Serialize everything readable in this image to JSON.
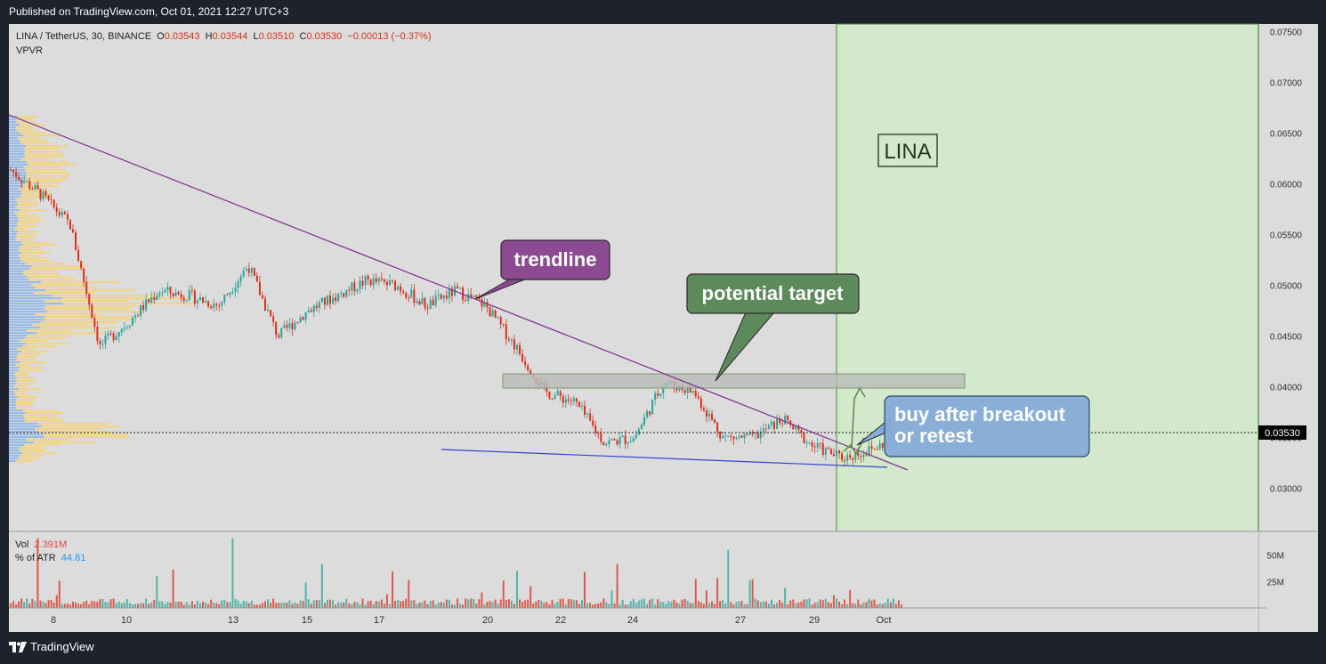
{
  "header": {
    "published": "Published on TradingView.com, Oct 01, 2021 12:27 UTC+3"
  },
  "legend": {
    "symbol": "LINA / TetherUS, 30, BINANCE",
    "open_label": "O",
    "open": "0.03543",
    "high_label": "H",
    "high": "0.03544",
    "low_label": "L",
    "low": "0.03510",
    "close_label": "C",
    "close": "0.03530",
    "change": "−0.00013 (−0.37%)",
    "indicator": "VPVR"
  },
  "volume_legend": {
    "vol_label": "Vol",
    "vol_value": "2.391M",
    "atr_label": "% of ATR",
    "atr_value": "44.81"
  },
  "footer": {
    "brand": "TradingView"
  },
  "colors": {
    "up": "#26a69a",
    "down": "#d9301b",
    "trendline": "#7b2d8e",
    "support": "#3245c8",
    "target_zone": "#a8d98f"
  },
  "chart_data": {
    "type": "candlestick",
    "price_axis": {
      "ticks": [
        "0.07500",
        "0.07000",
        "0.06500",
        "0.06000",
        "0.05500",
        "0.05000",
        "0.04500",
        "0.04000",
        "0.03500",
        "0.03000"
      ],
      "range": [
        0.0255,
        0.0755
      ],
      "current_price": "0.03530"
    },
    "volume_axis": {
      "ticks": [
        "50M",
        "25M"
      ],
      "range": [
        0,
        70
      ]
    },
    "time_axis": {
      "ticks": [
        "8",
        "10",
        "13",
        "15",
        "17",
        "20",
        "22",
        "24",
        "27",
        "29",
        "Oct"
      ]
    },
    "close_path": [
      [
        "8",
        0.0614
      ],
      [
        "8",
        0.059
      ],
      [
        "8",
        0.056
      ],
      [
        "8",
        0.044
      ],
      [
        "10",
        0.0465
      ],
      [
        "10",
        0.0495
      ],
      [
        "10",
        0.049
      ],
      [
        "13",
        0.048
      ],
      [
        "13",
        0.052
      ],
      [
        "13",
        0.045
      ],
      [
        "15",
        0.0475
      ],
      [
        "15",
        0.049
      ],
      [
        "15",
        0.0505
      ],
      [
        "17",
        0.05
      ],
      [
        "17",
        0.048
      ],
      [
        "17",
        0.0495
      ],
      [
        "20",
        0.048
      ],
      [
        "20",
        0.044
      ],
      [
        "20",
        0.0395
      ],
      [
        "22",
        0.0385
      ],
      [
        "22",
        0.0345
      ],
      [
        "22",
        0.035
      ],
      [
        "24",
        0.0405
      ],
      [
        "24",
        0.0395
      ],
      [
        "24",
        0.035
      ],
      [
        "27",
        0.035
      ],
      [
        "27",
        0.0368
      ],
      [
        "27",
        0.0342
      ],
      [
        "29",
        0.033
      ],
      [
        "29",
        0.0338
      ],
      [
        "Oct",
        0.0353
      ]
    ],
    "annotations": [
      {
        "type": "callout",
        "text": "trendline",
        "color": "#8b4a92"
      },
      {
        "type": "callout",
        "text": "potential target",
        "color": "#5d8a5a"
      },
      {
        "type": "callout",
        "text": "buy after breakout\nor retest",
        "color": "#85acd8"
      },
      {
        "type": "label",
        "text": "LINA"
      },
      {
        "type": "zone",
        "label": "target zone",
        "price_range": [
          0.0396,
          0.041
        ]
      },
      {
        "type": "trendline",
        "from": [
          "8",
          0.0665
        ],
        "to": [
          "Oct",
          0.0315
        ]
      },
      {
        "type": "support",
        "from": [
          "20",
          0.0336
        ],
        "to": [
          "Oct",
          0.0318
        ]
      }
    ]
  }
}
